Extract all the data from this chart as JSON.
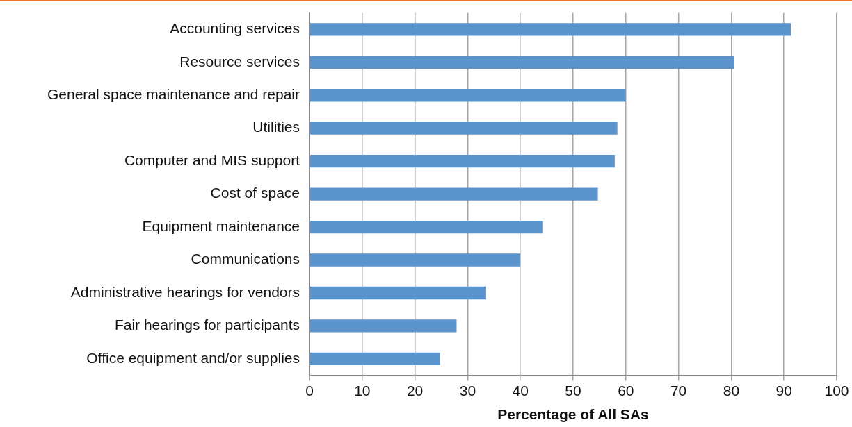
{
  "chart_data": {
    "type": "bar",
    "orientation": "horizontal",
    "xlabel": "Percentage of All SAs",
    "categories": [
      "Accounting services",
      "Resource services",
      "General space maintenance and repair",
      "Utilities",
      "Computer and MIS support",
      "Cost of space",
      "Equipment maintenance",
      "Communications",
      "Administrative hearings for vendors",
      "Fair hearings for participants",
      "Office equipment and/or supplies"
    ],
    "values": [
      91.3,
      80.6,
      60,
      58.4,
      57.9,
      54.7,
      44.3,
      40,
      33.5,
      27.9,
      24.8
    ],
    "color": "#5b93cc",
    "xlim": [
      0,
      100
    ],
    "xticks": [
      0,
      10,
      20,
      30,
      40,
      50,
      60,
      70,
      80,
      90,
      100
    ],
    "grid": "x",
    "legend": false
  }
}
